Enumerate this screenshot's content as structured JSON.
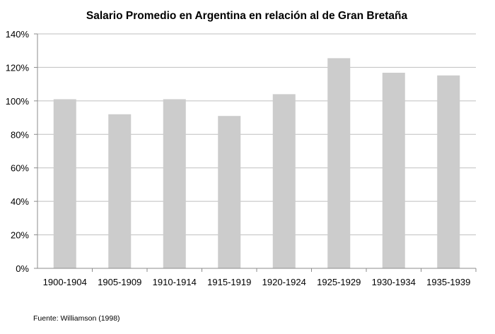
{
  "chart_data": {
    "type": "bar",
    "title": "Salario Promedio en Argentina en relación al de Gran Bretaña",
    "xlabel": "",
    "ylabel": "",
    "categories": [
      "1900-1904",
      "1905-1909",
      "1910-1914",
      "1915-1919",
      "1920-1924",
      "1925-1929",
      "1930-1934",
      "1935-1939"
    ],
    "values": [
      101,
      92,
      101,
      91,
      104,
      125.5,
      116.8,
      115.2
    ],
    "ylim": [
      0,
      140
    ],
    "yticks": [
      0,
      20,
      40,
      60,
      80,
      100,
      120,
      140
    ],
    "ytick_labels": [
      "0%",
      "20%",
      "40%",
      "60%",
      "80%",
      "100%",
      "120%",
      "140%"
    ],
    "grid": true,
    "legend": "none",
    "colors": {
      "bar": "#cccccc",
      "grid": "#bfbfbf",
      "axis": "#8c8c8c"
    }
  },
  "footer": {
    "source": "Fuente: Williamson (1998)"
  }
}
